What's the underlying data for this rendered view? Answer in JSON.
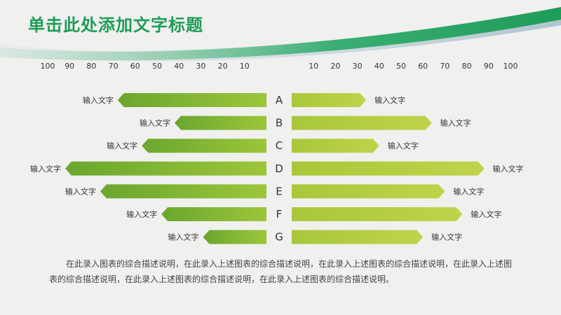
{
  "slide": {
    "title": "单击此处添加文字标题",
    "description": "在此录入图表的综合描述说明，在此录入上述图表的综合描述说明，在此录入上述图表的综合描述说明，在此录入上述图表的综合描述说明，在此录入上述图表的综合描述说明，在此录入上述图表的综合描述说明。"
  },
  "colors": {
    "title": "#1f9c58",
    "header_band": "#2aa86a",
    "left_bar_dark": "#6aa62e",
    "left_bar_light": "#9cc63a",
    "right_bar_light": "#a8c83a",
    "right_bar_dark": "#c0d34a"
  },
  "chart_data": {
    "type": "bar",
    "orientation": "horizontal-butterfly",
    "categories": [
      "A",
      "B",
      "C",
      "D",
      "E",
      "F",
      "G"
    ],
    "left_axis_ticks": [
      100,
      90,
      80,
      70,
      60,
      50,
      40,
      30,
      20,
      10
    ],
    "right_axis_ticks": [
      10,
      20,
      30,
      40,
      50,
      60,
      70,
      80,
      90,
      100
    ],
    "xlim": [
      0,
      100
    ],
    "grid": false,
    "series": [
      {
        "side": "left",
        "values": [
          68,
          42,
          57,
          92,
          76,
          48,
          29
        ],
        "labels": [
          "输入文字",
          "输入文字",
          "输入文字",
          "输入文字",
          "输入文字",
          "输入文字",
          "输入文字"
        ]
      },
      {
        "side": "right",
        "values": [
          34,
          64,
          40,
          88,
          70,
          78,
          60
        ],
        "labels": [
          "输入文字",
          "输入文字",
          "输入文字",
          "输入文字",
          "输入文字",
          "输入文字",
          "输入文字"
        ]
      }
    ]
  }
}
